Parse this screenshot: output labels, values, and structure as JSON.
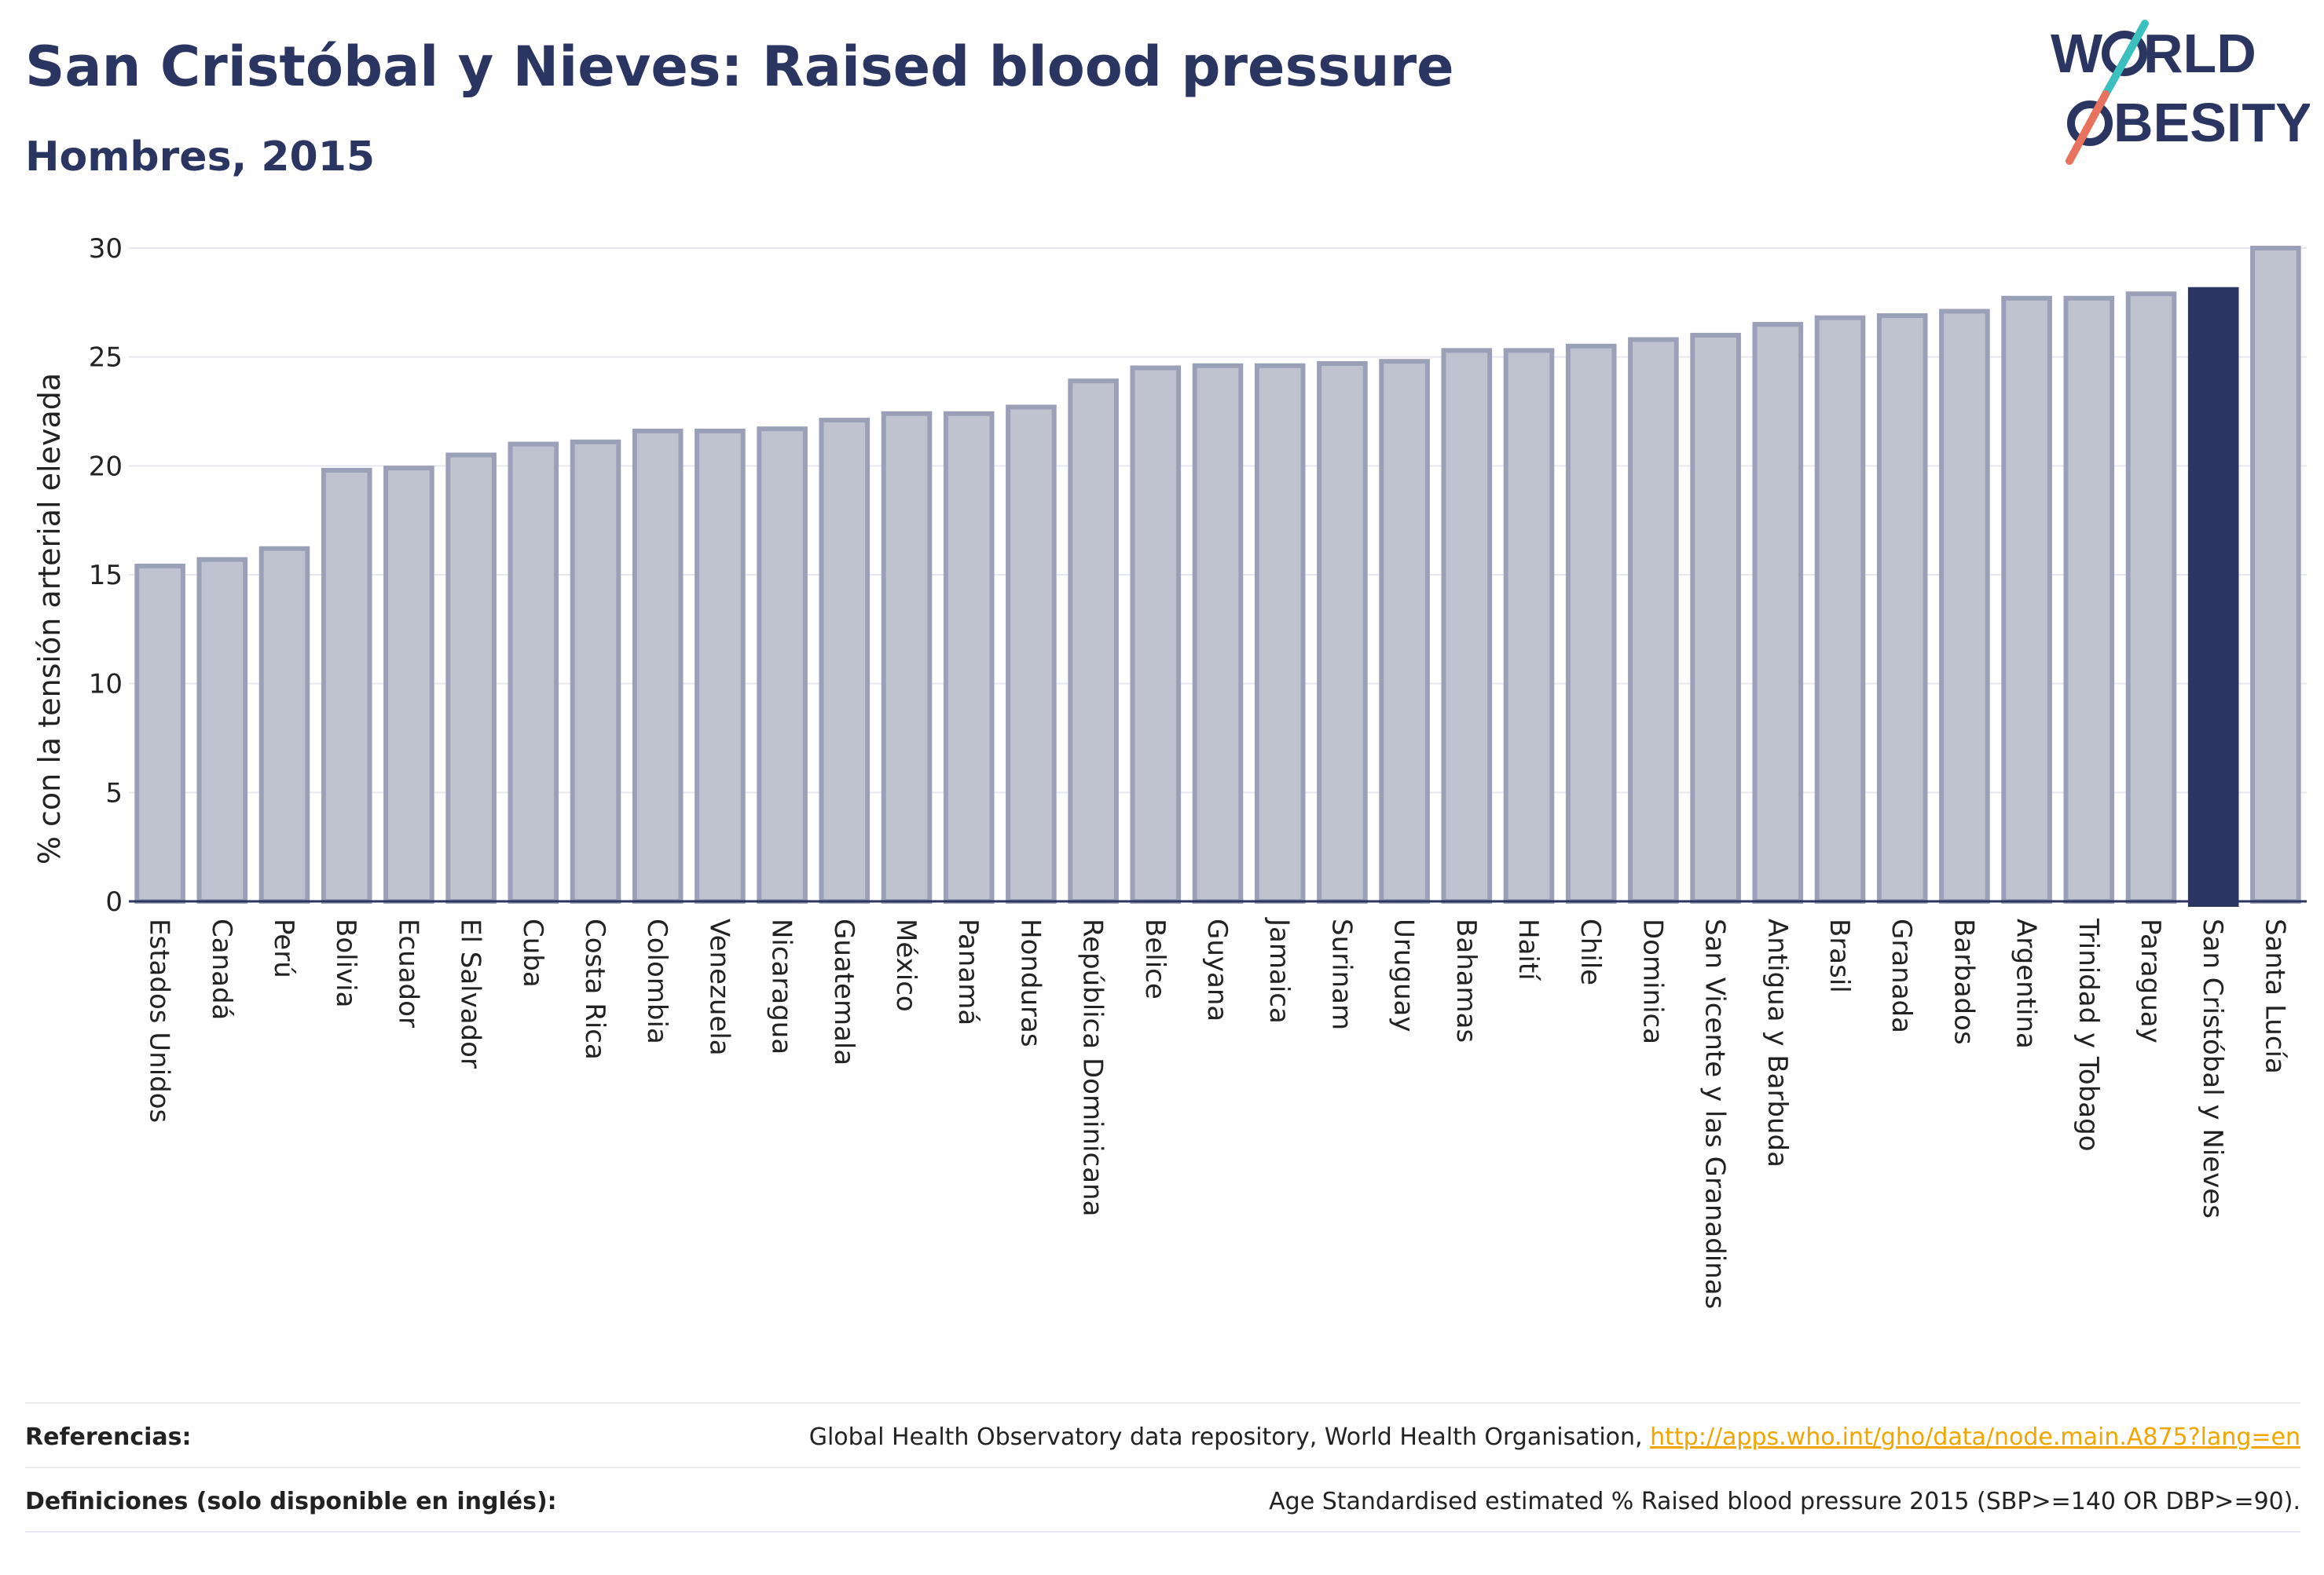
{
  "header": {
    "title": "San Cristóbal y Nieves: Raised blood pressure",
    "subtitle": "Hombres, 2015"
  },
  "logo": {
    "line1": "W RLD",
    "line2": "BESITY",
    "text": "WORLD OBESITY"
  },
  "colors": {
    "bar_fill": "#bfc3d0",
    "bar_stroke": "#9aa0b8",
    "highlight": "#2b3561",
    "text": "#2b3561",
    "grid": "#e6e8ef",
    "link": "#f0a500"
  },
  "chart_data": {
    "type": "bar",
    "ylabel": "% con la tensión arterial elevada",
    "ylim": [
      0,
      30
    ],
    "yticks": [
      0,
      5,
      10,
      15,
      20,
      25,
      30
    ],
    "highlight": "San Cristóbal y Nieves",
    "categories": [
      "Estados Unidos",
      "Canadá",
      "Perú",
      "Bolivia",
      "Ecuador",
      "El Salvador",
      "Cuba",
      "Costa Rica",
      "Colombia",
      "Venezuela",
      "Nicaragua",
      "Guatemala",
      "México",
      "Panamá",
      "Honduras",
      "República Dominicana",
      "Belice",
      "Guyana",
      "Jamaica",
      "Surinam",
      "Uruguay",
      "Bahamas",
      "Haití",
      "Chile",
      "Dominica",
      "San Vicente y las Granadinas",
      "Antigua y Barbuda",
      "Brasil",
      "Granada",
      "Barbados",
      "Argentina",
      "Trinidad y Tobago",
      "Paraguay",
      "San Cristóbal y Nieves",
      "Santa Lucía"
    ],
    "values": [
      15.4,
      15.7,
      16.2,
      19.8,
      19.9,
      20.5,
      21.0,
      21.1,
      21.6,
      21.6,
      21.7,
      22.1,
      22.4,
      22.4,
      22.7,
      23.9,
      24.5,
      24.6,
      24.6,
      24.7,
      24.8,
      25.3,
      25.3,
      25.5,
      25.8,
      26.0,
      26.5,
      26.8,
      26.9,
      27.1,
      27.7,
      27.7,
      27.9,
      28.1,
      30.0
    ]
  },
  "footer": {
    "references_label": "Referencias:",
    "references_text": "Global Health Observatory data repository, World Health Organisation,",
    "references_link": "http://apps.who.int/gho/data/node.main.A875?lang=en",
    "definitions_label": "Definiciones (solo disponible en inglés):",
    "definitions_text": "Age Standardised estimated % Raised blood pressure 2015 (SBP>=140 OR DBP>=90)."
  }
}
